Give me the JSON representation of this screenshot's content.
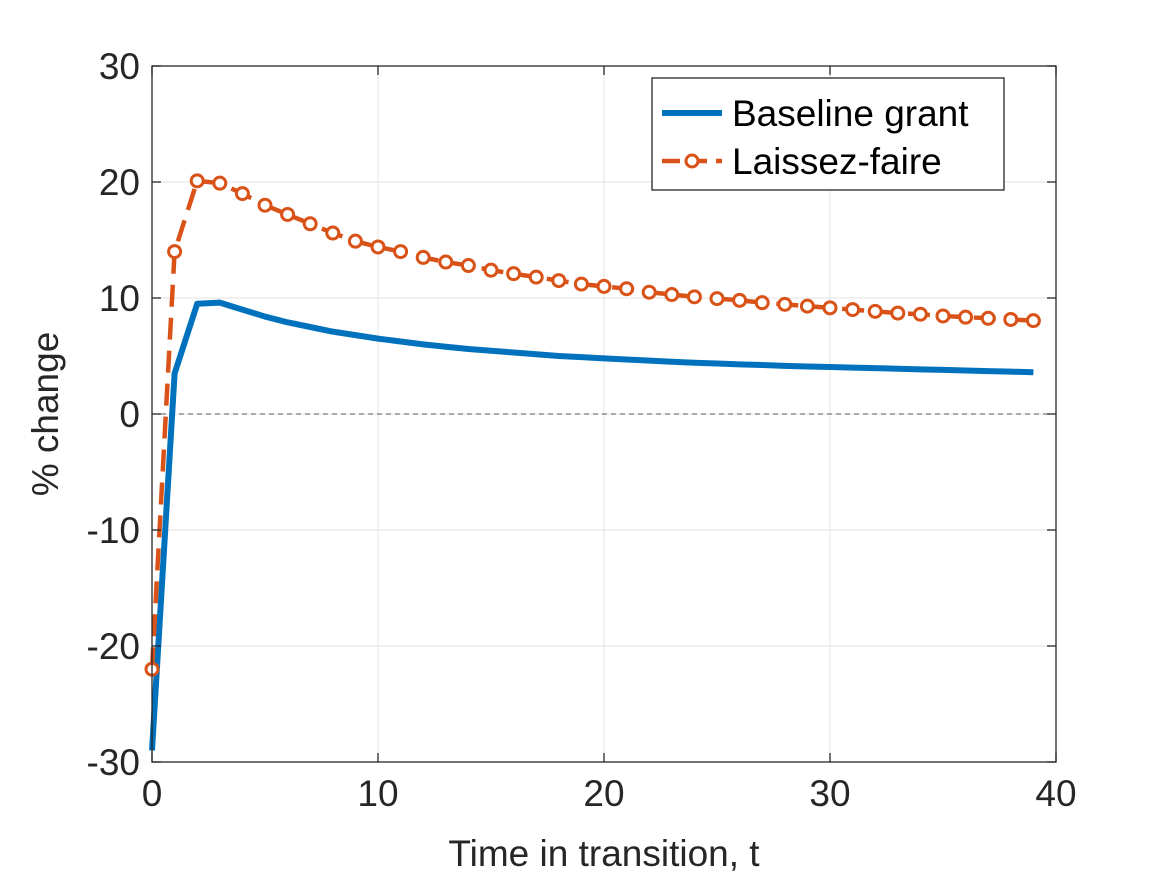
{
  "chart_data": {
    "type": "line",
    "title": "",
    "xlabel": "Time in transition, t",
    "ylabel": "% change",
    "xlim": [
      0,
      40
    ],
    "ylim": [
      -30,
      30
    ],
    "xticks": [
      0,
      10,
      20,
      30,
      40
    ],
    "yticks": [
      -30,
      -20,
      -10,
      0,
      10,
      20,
      30
    ],
    "grid": true,
    "legend_location": "top-right",
    "reference_line": {
      "y": 0,
      "style": "dashed"
    },
    "series": [
      {
        "name": "Baseline grant",
        "color": "#0072BD",
        "style": "solid",
        "marker": "none",
        "x": [
          0,
          1,
          2,
          3,
          4,
          5,
          6,
          7,
          8,
          9,
          10,
          11,
          12,
          13,
          14,
          15,
          16,
          17,
          18,
          19,
          20,
          21,
          22,
          23,
          24,
          25,
          26,
          27,
          28,
          29,
          30,
          31,
          32,
          33,
          34,
          35,
          36,
          37,
          38,
          39
        ],
        "y": [
          -29.0,
          3.5,
          9.5,
          9.6,
          9.0,
          8.4,
          7.9,
          7.5,
          7.1,
          6.8,
          6.5,
          6.25,
          6.0,
          5.8,
          5.6,
          5.45,
          5.3,
          5.15,
          5.0,
          4.9,
          4.8,
          4.7,
          4.6,
          4.5,
          4.42,
          4.35,
          4.28,
          4.22,
          4.15,
          4.1,
          4.05,
          4.0,
          3.95,
          3.9,
          3.85,
          3.8,
          3.75,
          3.7,
          3.65,
          3.6
        ]
      },
      {
        "name": "Laissez-faire",
        "color": "#D95319",
        "style": "dashed",
        "marker": "circle",
        "x": [
          0,
          1,
          2,
          3,
          4,
          5,
          6,
          7,
          8,
          9,
          10,
          11,
          12,
          13,
          14,
          15,
          16,
          17,
          18,
          19,
          20,
          21,
          22,
          23,
          24,
          25,
          26,
          27,
          28,
          29,
          30,
          31,
          32,
          33,
          34,
          35,
          36,
          37,
          38,
          39
        ],
        "y": [
          -22.0,
          14.0,
          20.1,
          19.9,
          19.0,
          18.0,
          17.2,
          16.4,
          15.6,
          14.9,
          14.4,
          14.0,
          13.5,
          13.1,
          12.8,
          12.4,
          12.1,
          11.8,
          11.5,
          11.2,
          11.0,
          10.8,
          10.5,
          10.3,
          10.1,
          9.95,
          9.8,
          9.6,
          9.45,
          9.3,
          9.15,
          9.0,
          8.85,
          8.7,
          8.6,
          8.45,
          8.35,
          8.25,
          8.15,
          8.05
        ]
      }
    ]
  }
}
